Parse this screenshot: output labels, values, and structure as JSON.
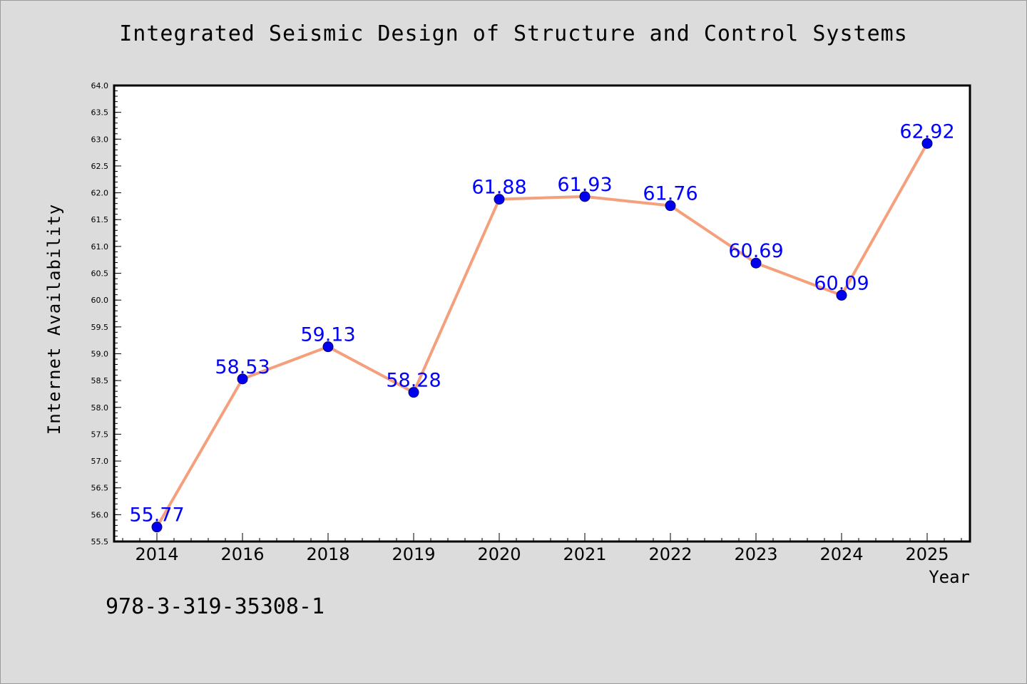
{
  "chart_data": {
    "type": "line",
    "title": "Integrated Seismic Design of Structure and Control Systems",
    "xlabel": "Year",
    "ylabel": "Internet Availability",
    "categories": [
      "2014",
      "2016",
      "2018",
      "2019",
      "2020",
      "2021",
      "2022",
      "2023",
      "2024",
      "2025"
    ],
    "values": [
      55.77,
      58.53,
      59.13,
      58.28,
      61.88,
      61.93,
      61.76,
      60.69,
      60.09,
      62.92
    ],
    "data_labels": [
      "55.77",
      "58.53",
      "59.13",
      "58.28",
      "61.88",
      "61.93",
      "61.76",
      "60.69",
      "60.09",
      "62.92"
    ],
    "ylim": [
      55.5,
      64.0
    ],
    "yticks": [
      "55.5",
      "56.0",
      "56.5",
      "57.0",
      "57.5",
      "58.0",
      "58.5",
      "59.0",
      "59.5",
      "60.0",
      "60.5",
      "61.0",
      "61.5",
      "62.0",
      "62.5",
      "63.0",
      "63.5",
      "64.0"
    ],
    "grid": false,
    "line_color": "#f4a07c",
    "marker_color": "#0000ee",
    "label_color": "#0000ff"
  },
  "footnote": "978-3-319-35308-1"
}
